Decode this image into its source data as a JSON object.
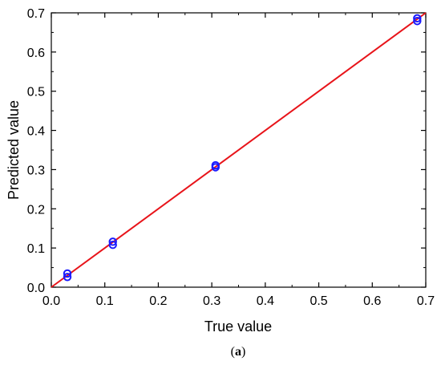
{
  "chart_data": {
    "type": "scatter",
    "title": "",
    "xlabel": "True value",
    "ylabel": "Predicted value",
    "xlim": [
      0.0,
      0.7
    ],
    "ylim": [
      0.0,
      0.7
    ],
    "xticks": [
      "0.0",
      "0.1",
      "0.2",
      "0.3",
      "0.4",
      "0.5",
      "0.6",
      "0.7"
    ],
    "yticks": [
      "0.0",
      "0.1",
      "0.2",
      "0.3",
      "0.4",
      "0.5",
      "0.6",
      "0.7"
    ],
    "grid": false,
    "legend": "none",
    "series": [
      {
        "type": "scatter",
        "marker": "open-circle",
        "color": "#1a1aff",
        "points": [
          {
            "x": 0.03,
            "y": 0.035
          },
          {
            "x": 0.03,
            "y": 0.026
          },
          {
            "x": 0.115,
            "y": 0.116
          },
          {
            "x": 0.115,
            "y": 0.108
          },
          {
            "x": 0.307,
            "y": 0.311
          },
          {
            "x": 0.307,
            "y": 0.306
          },
          {
            "x": 0.684,
            "y": 0.686
          },
          {
            "x": 0.684,
            "y": 0.679
          }
        ]
      },
      {
        "type": "line",
        "color": "#e8141a",
        "points": [
          {
            "x": 0.0,
            "y": 0.0
          },
          {
            "x": 0.7,
            "y": 0.7
          }
        ]
      }
    ]
  },
  "caption": {
    "open": "(",
    "label": "a",
    "close": ")"
  }
}
